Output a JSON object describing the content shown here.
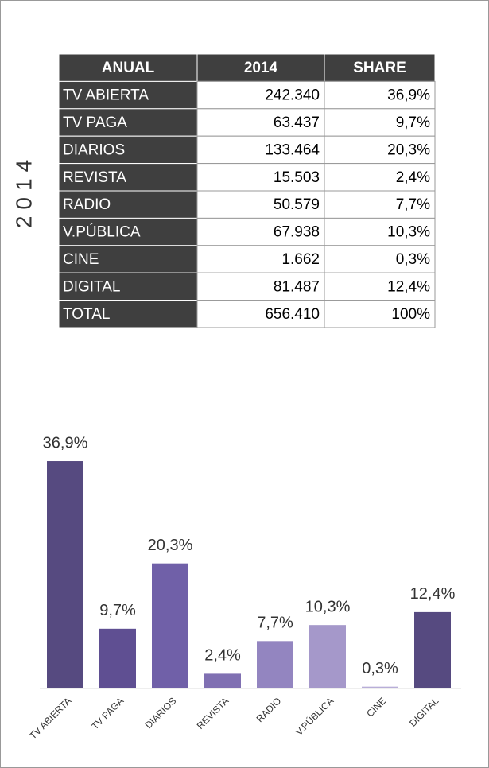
{
  "side_label": "2014",
  "table": {
    "header": [
      "ANUAL",
      "2014",
      "SHARE"
    ],
    "rows": [
      [
        "TV ABIERTA",
        "242.340",
        "36,9%"
      ],
      [
        "TV PAGA",
        "63.437",
        "9,7%"
      ],
      [
        "DIARIOS",
        "133.464",
        "20,3%"
      ],
      [
        "REVISTA",
        "15.503",
        "2,4%"
      ],
      [
        "RADIO",
        "50.579",
        "7,7%"
      ],
      [
        "V.PÚBLICA",
        "67.938",
        "10,3%"
      ],
      [
        "CINE",
        "1.662",
        "0,3%"
      ],
      [
        "DIGITAL",
        "81.487",
        "12,4%"
      ],
      [
        "TOTAL",
        "656.410",
        "100%"
      ]
    ]
  },
  "chart_data": {
    "type": "bar",
    "categories": [
      "TV ABIERTA",
      "TV PAGA",
      "DIARIOS",
      "REVISTA",
      "RADIO",
      "V.PÚBLICA",
      "CINE",
      "DIGITAL"
    ],
    "values": [
      36.9,
      9.7,
      20.3,
      2.4,
      7.7,
      10.3,
      0.3,
      12.4
    ],
    "value_labels": [
      "36,9%",
      "9,7%",
      "20,3%",
      "2,4%",
      "7,7%",
      "10,3%",
      "0,3%",
      "12,4%"
    ],
    "colors": [
      "#564a80",
      "#5f4f92",
      "#7060a8",
      "#8070b2",
      "#9385c0",
      "#a598ca",
      "#b8aed8",
      "#564a80"
    ]
  }
}
